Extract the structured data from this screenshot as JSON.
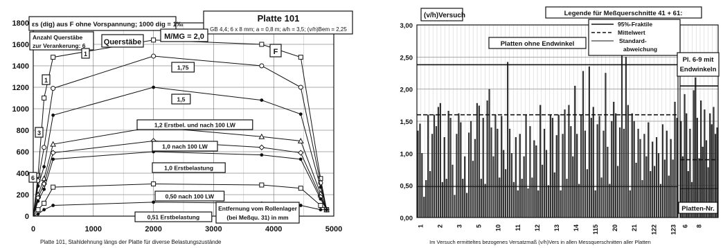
{
  "chart_data": [
    {
      "type": "line",
      "title": "Platte 101",
      "subtitle": "GB 4,4; 6 x 8 mm; a = 0,8 m; a/h = 3,5; (v/h)Bem = 2,25",
      "header_text": "εs (dig) aus F ohne Vorspannung; 1000 dig = 1‰",
      "caption": "Platte 101, Stahldehnung längs der Platte für diverse Belastungszustände",
      "xlabel": "Entfernung vom Rollenlager (bei Meßqu. 31) in mm",
      "xlim": [
        0,
        5000
      ],
      "ylim": [
        0,
        1800
      ],
      "x_ticks": [
        "0",
        "1000",
        "2000",
        "3000",
        "4000",
        "5000"
      ],
      "y_ticks": [
        "0",
        "200",
        "400",
        "600",
        "800",
        "1000",
        "1200",
        "1400",
        "1600",
        "1800"
      ],
      "grid": true,
      "annotations": {
        "anzahl": "Anzahl Querstäbe zur Verankerung: 6",
        "querstaebe": "Querstäbe",
        "mmg": "M/MG = 2,0",
        "f": "F",
        "one": "1",
        "three": "3",
        "six": "6",
        "seven": "1"
      },
      "series": [
        {
          "name": "2,0",
          "marker": "square",
          "x": [
            0,
            80,
            180,
            330,
            2000,
            3800,
            4450,
            4780,
            4880
          ],
          "y": [
            0,
            380,
            1100,
            1480,
            1640,
            1600,
            1480,
            350,
            60
          ]
        },
        {
          "name": "1,75",
          "marker": "circle",
          "x": [
            0,
            80,
            180,
            330,
            2000,
            3800,
            4450,
            4780,
            4880
          ],
          "y": [
            0,
            330,
            640,
            1190,
            1490,
            1400,
            1200,
            310,
            60
          ]
        },
        {
          "name": "1,5",
          "marker": "dot",
          "x": [
            0,
            80,
            180,
            330,
            2000,
            3800,
            4450,
            4780,
            4880
          ],
          "y": [
            0,
            280,
            460,
            940,
            1200,
            1080,
            950,
            270,
            60
          ]
        },
        {
          "name": "1,2 Erstbel. und nach 100 LW",
          "marker": "triangle",
          "x": [
            0,
            80,
            180,
            330,
            2000,
            3800,
            4450,
            4780,
            4880
          ],
          "y": [
            0,
            200,
            350,
            670,
            830,
            740,
            700,
            210,
            60
          ]
        },
        {
          "name": "1,0 nach 100 LW",
          "marker": "diamond",
          "x": [
            0,
            80,
            180,
            330,
            2000,
            3800,
            4450,
            4780,
            4880
          ],
          "y": [
            0,
            170,
            300,
            590,
            700,
            640,
            590,
            180,
            60
          ]
        },
        {
          "name": "1,0 Erstbelastung",
          "marker": "dot",
          "x": [
            0,
            80,
            180,
            330,
            2000,
            3800,
            4450,
            4780,
            4880
          ],
          "y": [
            0,
            140,
            250,
            530,
            600,
            570,
            530,
            160,
            60
          ]
        },
        {
          "name": "0,50 nach 100 LW",
          "marker": "square",
          "x": [
            0,
            80,
            180,
            330,
            2000,
            3800,
            4450,
            4780,
            4880
          ],
          "y": [
            0,
            60,
            120,
            270,
            300,
            290,
            260,
            100,
            60
          ]
        },
        {
          "name": "0,51 Erstbelastung",
          "marker": "dot",
          "x": [
            0,
            80,
            180,
            330,
            2000,
            3800,
            4450,
            4780,
            4880
          ],
          "y": [
            0,
            20,
            60,
            100,
            130,
            120,
            100,
            60,
            60
          ]
        }
      ]
    },
    {
      "type": "bar",
      "ylabel": "(v/h)Versuch",
      "caption": "Im Versuch ermitteltes bezogenes Versatzmaß (v/h)Vers in allen Messquerschnitten aller Platten",
      "ylim": [
        0,
        3.0
      ],
      "y_ticks": [
        "0,00",
        "0,50",
        "1,00",
        "1,50",
        "2,00",
        "2,50",
        "3,00"
      ],
      "x_ticks": [
        "1",
        "2",
        "3",
        "5",
        "10",
        "11",
        "12",
        "13",
        "14",
        "115",
        "20",
        "21",
        "122",
        "123",
        "6",
        "8"
      ],
      "grid": true,
      "legend_title": "Legende für Meßquerschnitte 41 + 61:",
      "legend": [
        "95%-Fraktile",
        "Mittelwert",
        "Standard-abweichung"
      ],
      "labels": {
        "ohne": "Platten ohne Endwinkel",
        "mit": "Pl. 6-9 mit Endwinkeln",
        "nr": "Platten-Nr."
      },
      "reference_lines_left": {
        "fraktile": 2.38,
        "mittelwert": 1.6,
        "std_lower": 0.48
      },
      "reference_lines_right": {
        "fraktile": 2.05,
        "mittelwert": 0.9,
        "std_lower": 0.45
      },
      "bars_left": [
        1.35,
        1.46,
        1.0,
        0.32,
        0.58,
        1.6,
        0.72,
        1.3,
        1.6,
        1.42,
        1.72,
        1.78,
        0.55,
        1.25,
        0.6,
        1.66,
        1.55,
        0.82,
        0.35,
        1.3,
        1.62,
        1.48,
        0.6,
        0.95,
        0.38,
        1.32,
        1.5,
        0.88,
        1.22,
        1.78,
        1.74,
        0.6,
        1.55,
        0.52,
        1.82,
        2.0,
        1.4,
        0.95,
        1.6,
        1.38,
        0.62,
        1.58,
        1.05,
        0.75,
        2.42,
        1.38,
        1.0,
        0.55,
        1.25,
        0.42,
        1.3,
        0.6,
        0.95,
        1.6,
        0.45,
        1.42,
        0.62,
        1.2,
        1.12,
        0.42,
        1.75,
        0.82,
        1.38,
        1.05,
        0.5,
        1.6,
        1.55,
        0.7,
        1.28,
        1.6,
        0.42,
        1.3,
        1.68,
        0.6,
        1.75,
        1.42,
        0.95,
        2.05,
        1.3,
        0.52,
        1.6,
        2.28,
        1.35,
        0.75,
        2.35,
        1.55,
        1.72,
        0.42,
        1.45,
        1.58,
        0.62,
        1.35,
        2.25,
        1.1,
        0.52,
        1.5,
        1.8,
        1.62,
        0.8,
        1.4,
        2.58,
        1.38,
        2.5,
        1.75,
        0.42,
        1.62,
        1.5,
        0.85,
        1.38,
        1.22,
        0.58,
        1.3,
        0.95,
        1.48,
        0.72,
        1.18,
        0.8,
        1.25,
        1.0,
        0.52,
        1.45,
        0.9,
        1.35,
        0.65,
        1.22,
        0.9,
        1.8,
        1.55
      ],
      "bars_right": [
        1.5,
        0.95,
        1.92,
        1.62,
        0.72,
        1.38,
        0.55,
        1.98,
        2.18,
        1.55,
        0.92,
        1.82,
        1.1,
        1.68,
        1.2,
        0.78,
        1.62,
        1.45,
        1.72,
        1.3,
        1.4
      ]
    }
  ]
}
